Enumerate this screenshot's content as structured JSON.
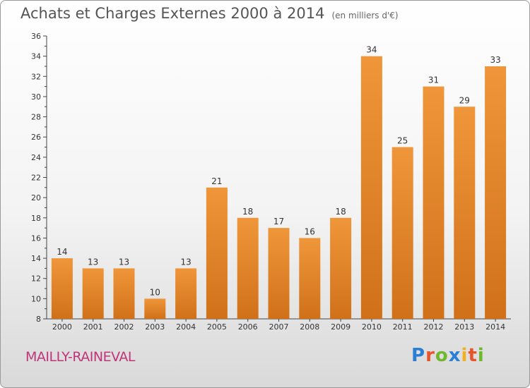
{
  "chart_data": {
    "type": "bar",
    "title": "Achats et Charges Externes 2000 à 2014",
    "subtitle": "(en milliers d'€)",
    "categories": [
      "2000",
      "2001",
      "2002",
      "2003",
      "2004",
      "2005",
      "2006",
      "2007",
      "2008",
      "2009",
      "2010",
      "2011",
      "2012",
      "2013",
      "2014"
    ],
    "values": [
      14,
      13,
      13,
      10,
      13,
      21,
      18,
      17,
      16,
      18,
      34,
      25,
      31,
      29,
      33
    ],
    "ylim": [
      8,
      36
    ],
    "yticks": [
      8,
      10,
      12,
      14,
      16,
      18,
      20,
      22,
      24,
      26,
      28,
      30,
      32,
      34,
      36
    ],
    "grid": false,
    "bar_color": "#f0963a",
    "bar_color_dark": "#d0711a"
  },
  "location": "MAILLY-RAINEVAL",
  "brand": {
    "letters": [
      "P",
      "r",
      "o",
      "x",
      "i",
      "t",
      "i"
    ],
    "colors": [
      "#2a7fd4",
      "#e8542a",
      "#6fb82d",
      "#2a7fd4",
      "#f2b01e",
      "#e8542a",
      "#6fb82d"
    ]
  }
}
